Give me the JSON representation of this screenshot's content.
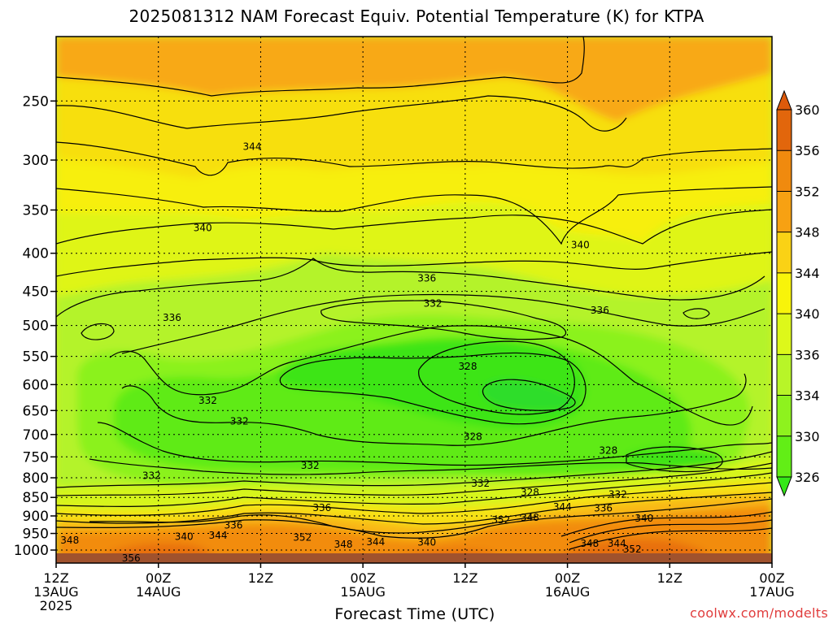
{
  "title": "2025081312 NAM Forecast Equiv. Potential Temperature (K) for KTPA",
  "xaxis_title": "Forecast Time (UTC)",
  "credit": "coolwx.com/modelts",
  "chart_data": {
    "type": "heatmap",
    "title": "2025081312 NAM Forecast Equiv. Potential Temperature (K) for KTPA",
    "xlabel": "Forecast Time (UTC)",
    "ylabel": "",
    "y_scale": "log",
    "y_reversed": true,
    "y_ticks": [
      250,
      300,
      350,
      400,
      450,
      500,
      550,
      600,
      650,
      700,
      750,
      800,
      850,
      900,
      950,
      1000
    ],
    "x_hours": [
      0,
      12,
      24,
      36,
      48,
      60,
      72,
      84
    ],
    "x_tick_labels": [
      [
        "12Z",
        "13AUG",
        "2025"
      ],
      [
        "00Z",
        "14AUG"
      ],
      [
        "12Z"
      ],
      [
        "00Z",
        "15AUG"
      ],
      [
        "12Z"
      ],
      [
        "00Z",
        "16AUG"
      ],
      [
        "12Z"
      ],
      [
        "00Z",
        "17AUG"
      ]
    ],
    "grid": true,
    "colorbar": {
      "levels": [
        326,
        330,
        334,
        336,
        340,
        344,
        348,
        352,
        356,
        360
      ],
      "colors": [
        "#3ce614",
        "#62ee16",
        "#8ef21e",
        "#b8f528",
        "#ddf81a",
        "#f8f40a",
        "#fad215",
        "#f7a112",
        "#f08a0e",
        "#e2660c"
      ],
      "extend_low_color": "#34e818",
      "extend_high_color": "#dd5a0b"
    },
    "contour_labels": [
      {
        "text": "344",
        "hour": 23.0,
        "p": 288
      },
      {
        "text": "340",
        "hour": 17.2,
        "p": 370
      },
      {
        "text": "340",
        "hour": 61.5,
        "p": 390
      },
      {
        "text": "336",
        "hour": 43.5,
        "p": 432
      },
      {
        "text": "336",
        "hour": 13.6,
        "p": 488
      },
      {
        "text": "336",
        "hour": 63.8,
        "p": 477
      },
      {
        "text": "332",
        "hour": 44.2,
        "p": 467
      },
      {
        "text": "328",
        "hour": 48.3,
        "p": 567
      },
      {
        "text": "332",
        "hour": 17.8,
        "p": 630
      },
      {
        "text": "332",
        "hour": 21.5,
        "p": 672
      },
      {
        "text": "328",
        "hour": 48.9,
        "p": 705
      },
      {
        "text": "332",
        "hour": 29.8,
        "p": 770
      },
      {
        "text": "332",
        "hour": 11.2,
        "p": 795
      },
      {
        "text": "328",
        "hour": 64.8,
        "p": 735
      },
      {
        "text": "332",
        "hour": 49.8,
        "p": 814
      },
      {
        "text": "328",
        "hour": 55.6,
        "p": 837
      },
      {
        "text": "332",
        "hour": 65.9,
        "p": 842
      },
      {
        "text": "336",
        "hour": 31.2,
        "p": 878
      },
      {
        "text": "344",
        "hour": 59.4,
        "p": 875
      },
      {
        "text": "336",
        "hour": 64.2,
        "p": 879
      },
      {
        "text": "348",
        "hour": 55.6,
        "p": 905
      },
      {
        "text": "352",
        "hour": 52.2,
        "p": 911
      },
      {
        "text": "340",
        "hour": 69.0,
        "p": 907
      },
      {
        "text": "336",
        "hour": 20.8,
        "p": 926
      },
      {
        "text": "340",
        "hour": 15.0,
        "p": 960
      },
      {
        "text": "344",
        "hour": 19.0,
        "p": 956
      },
      {
        "text": "352",
        "hour": 28.9,
        "p": 962
      },
      {
        "text": "348",
        "hour": 1.6,
        "p": 970
      },
      {
        "text": "348",
        "hour": 33.7,
        "p": 982
      },
      {
        "text": "344",
        "hour": 37.5,
        "p": 975
      },
      {
        "text": "340",
        "hour": 43.5,
        "p": 977
      },
      {
        "text": "348",
        "hour": 62.6,
        "p": 980
      },
      {
        "text": "344",
        "hour": 65.8,
        "p": 980
      },
      {
        "text": "352",
        "hour": 67.6,
        "p": 997
      },
      {
        "text": "356",
        "hour": 8.8,
        "p": 1026
      }
    ]
  }
}
